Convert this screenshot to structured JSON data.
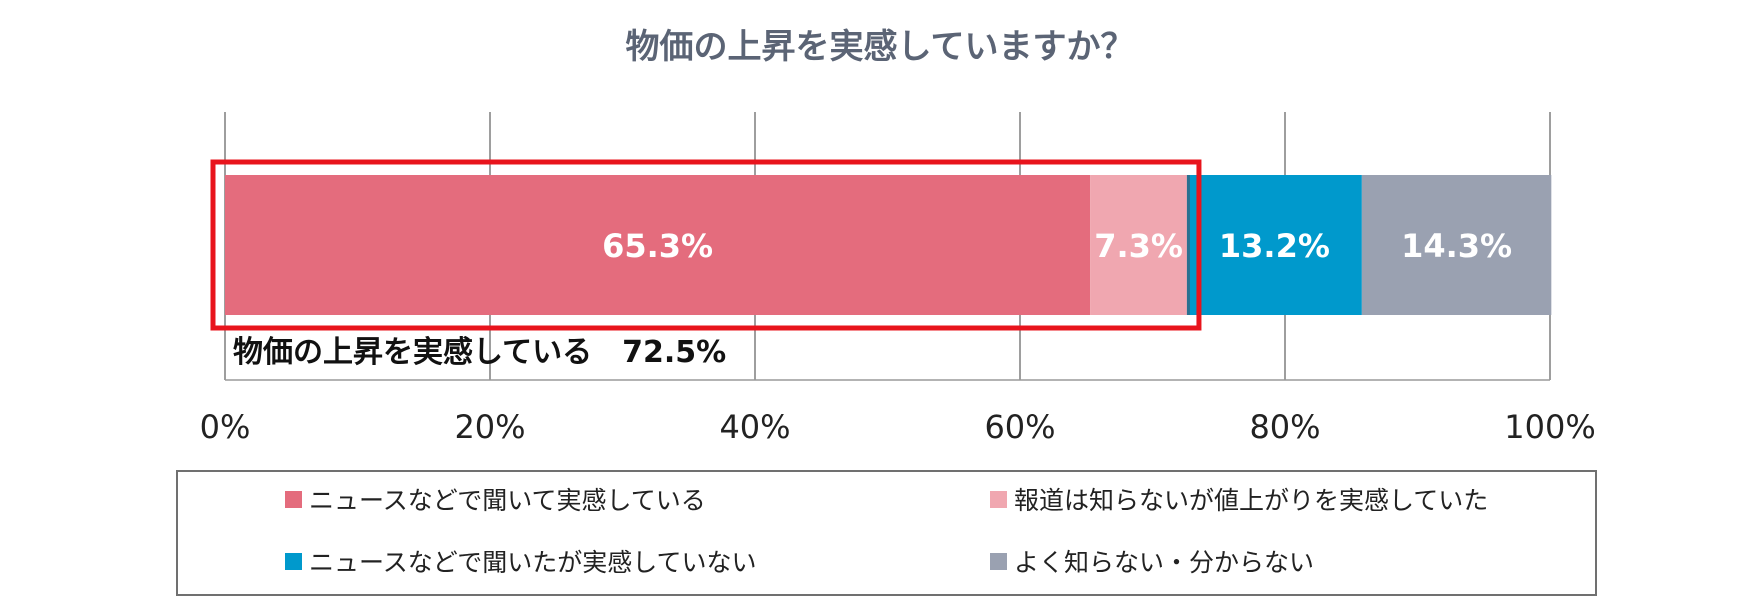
{
  "chart_data": {
    "type": "bar",
    "orientation": "horizontal",
    "stacked": true,
    "title": "物価の上昇を実感していますか？",
    "xlim": [
      0,
      100
    ],
    "x_ticks": [
      "0%",
      "20%",
      "40%",
      "60%",
      "80%",
      "100%"
    ],
    "grid": true,
    "legend_position": "bottom",
    "series": [
      {
        "name": "ニュースなどで聞いて実感している",
        "value": 65.3,
        "label": "65.3%",
        "color": "#e46c7d"
      },
      {
        "name": "報道は知らないが値上がりを実感していた",
        "value": 7.3,
        "label": "7.3%",
        "color": "#f0a7b0"
      },
      {
        "name": "ニュースなどで聞いたが実感していない",
        "value": 13.2,
        "label": "13.2%",
        "color": "#0099cc"
      },
      {
        "name": "よく知らない・分からない",
        "value": 14.3,
        "label": "14.3%",
        "color": "#9aa1b1"
      }
    ],
    "highlight": {
      "text": "物価の上昇を実感している　72.5%",
      "covers_series": [
        0,
        1
      ],
      "color": "#e8141c"
    }
  }
}
